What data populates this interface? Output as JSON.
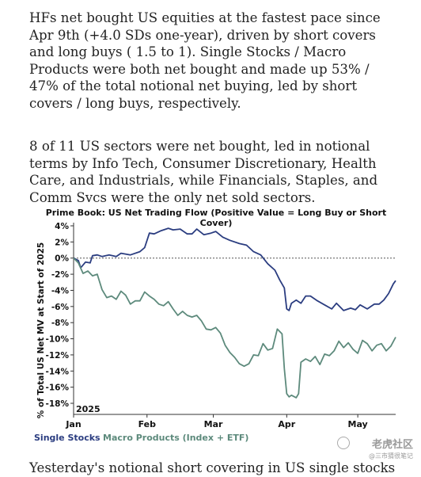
{
  "paragraphs": [
    "HFs net bought US equities at the fastest pace since Apr 9th (+4.0 SDs one-year), driven by short covers and long buys ( 1.5 to 1). Single Stocks / Macro Products were both net bought and made up 53% / 47% of the total notional net buying, led by short covers / long buys, respectively.",
    "8 of 11 US sectors were net bought, led in notional terms by Info Tech, Consumer Discretionary, Health Care, and Industrials, while Financials, Staples, and Comm Svcs were the only net sold sectors."
  ],
  "bottom_text": "Yesterday's notional short covering in US single stocks",
  "watermark": {
    "main": "老虎社区",
    "sub": "@三市猜很笔记"
  },
  "colors": {
    "single_stocks": "#2b3d80",
    "macro_products": "#5d8a7c",
    "zero_line": "#555555"
  },
  "chart_data": {
    "type": "line",
    "title": "Prime Book: US Net Trading Flow (Positive Value = Long Buy or Short Cover)",
    "ylabel": "% of Total US Net MV at Start of 2025",
    "year_label": "2025",
    "ylim": [
      -18,
      4
    ],
    "xlim": [
      0,
      136
    ],
    "yticks": [
      4,
      2,
      0,
      -2,
      -4,
      -6,
      -8,
      -10,
      -12,
      -14,
      -16,
      -18
    ],
    "ytick_labels": [
      "4%",
      "2%",
      "0%",
      "-2%",
      "-4%",
      "-6%",
      "-8%",
      "-10%",
      "-12%",
      "-14%",
      "-16%",
      "-18%"
    ],
    "xticks": [
      {
        "label": "Jan",
        "x": 0
      },
      {
        "label": "Feb",
        "x": 31
      },
      {
        "label": "Mar",
        "x": 59
      },
      {
        "label": "Apr",
        "x": 90
      },
      {
        "label": "May",
        "x": 120
      }
    ],
    "x_axis_note": "x values are days since Jan 1, 2025",
    "legend": "bottom-left",
    "series": [
      {
        "name": "Single Stocks",
        "color_key": "single_stocks",
        "x": [
          0,
          2,
          3,
          5,
          7,
          8,
          10,
          12,
          15,
          18,
          20,
          24,
          28,
          30,
          32,
          34,
          37,
          40,
          42,
          45,
          48,
          50,
          52,
          55,
          58,
          60,
          63,
          66,
          70,
          73,
          76,
          79,
          82,
          85,
          87,
          89,
          90,
          91,
          92,
          94,
          96,
          98,
          100,
          103,
          106,
          109,
          111,
          114,
          117,
          119,
          121,
          124,
          127,
          129,
          131,
          133,
          135,
          136
        ],
        "values": [
          0,
          -0.3,
          -1.2,
          -0.5,
          -0.6,
          0.3,
          0.4,
          0.2,
          0.4,
          0.2,
          0.6,
          0.4,
          0.8,
          1.3,
          3.1,
          3.0,
          3.4,
          3.7,
          3.5,
          3.6,
          3.0,
          3.0,
          3.6,
          2.9,
          3.1,
          3.3,
          2.6,
          2.2,
          1.8,
          1.6,
          0.8,
          0.4,
          -0.7,
          -1.5,
          -2.7,
          -3.7,
          -6.3,
          -6.5,
          -5.6,
          -5.2,
          -5.6,
          -4.7,
          -4.7,
          -5.3,
          -5.8,
          -6.3,
          -5.6,
          -6.5,
          -6.2,
          -6.4,
          -5.8,
          -6.3,
          -5.7,
          -5.7,
          -5.2,
          -4.4,
          -3.2,
          -2.8
        ]
      },
      {
        "name": "Macro Products (Index + ETF)",
        "color_key": "macro_products",
        "x": [
          0,
          2,
          4,
          6,
          8,
          10,
          12,
          14,
          16,
          18,
          20,
          22,
          24,
          26,
          28,
          30,
          32,
          34,
          36,
          38,
          40,
          42,
          44,
          46,
          48,
          50,
          52,
          54,
          56,
          58,
          60,
          62,
          64,
          66,
          68,
          70,
          72,
          74,
          76,
          78,
          80,
          82,
          84,
          86,
          88,
          89,
          90,
          91,
          92,
          94,
          95,
          96,
          98,
          100,
          102,
          104,
          106,
          108,
          110,
          112,
          114,
          116,
          118,
          120,
          122,
          124,
          126,
          128,
          130,
          132,
          134,
          136
        ],
        "values": [
          0,
          -0.6,
          -1.9,
          -1.6,
          -2.2,
          -2.0,
          -3.9,
          -4.9,
          -4.7,
          -5.1,
          -4.1,
          -4.6,
          -5.7,
          -5.3,
          -5.3,
          -4.2,
          -4.7,
          -5.1,
          -5.7,
          -5.9,
          -5.4,
          -6.3,
          -7.1,
          -6.6,
          -7.1,
          -7.3,
          -7.1,
          -7.8,
          -8.8,
          -8.9,
          -8.6,
          -9.3,
          -10.8,
          -11.7,
          -12.3,
          -13.1,
          -13.4,
          -13.1,
          -12.0,
          -12.1,
          -10.6,
          -11.4,
          -11.2,
          -8.8,
          -9.4,
          -13.7,
          -16.8,
          -17.2,
          -17.0,
          -17.3,
          -16.8,
          -12.9,
          -12.5,
          -12.8,
          -12.2,
          -13.2,
          -11.9,
          -12.1,
          -11.5,
          -10.3,
          -11.1,
          -10.5,
          -11.3,
          -11.8,
          -10.2,
          -10.6,
          -11.5,
          -10.8,
          -10.6,
          -11.5,
          -10.9,
          -9.8
        ]
      }
    ]
  }
}
